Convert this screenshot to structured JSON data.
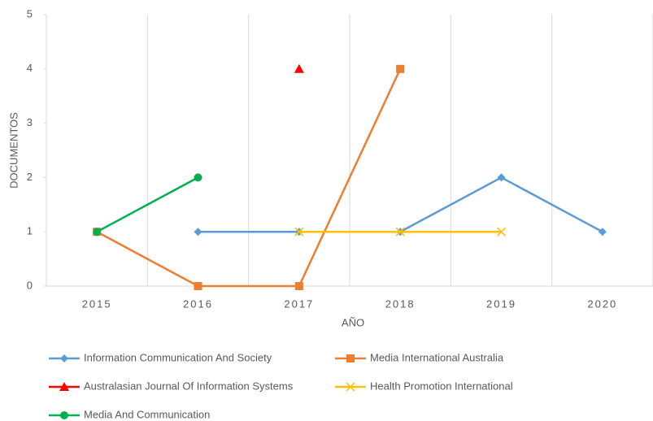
{
  "chart_data": {
    "type": "line",
    "categories": [
      "2015",
      "2016",
      "2017",
      "2018",
      "2019",
      "2020"
    ],
    "series": [
      {
        "name": "Information Communication And Society",
        "color": "#5b9bd5",
        "marker": "diamond",
        "values": [
          null,
          1,
          1,
          1,
          2,
          1
        ]
      },
      {
        "name": "Media International Australia",
        "color": "#ed7d31",
        "marker": "square",
        "values": [
          1,
          0,
          0,
          4,
          null,
          null
        ]
      },
      {
        "name": "Australasian Journal Of Information Systems",
        "color": "#ff0000",
        "marker": "triangle",
        "values": [
          null,
          null,
          4,
          null,
          null,
          null
        ]
      },
      {
        "name": "Health Promotion International",
        "color": "#ffc000",
        "marker": "x",
        "values": [
          null,
          null,
          1,
          1,
          1,
          null
        ]
      },
      {
        "name": "Media And Communication",
        "color": "#00b050",
        "marker": "circle",
        "values": [
          1,
          2,
          null,
          null,
          null,
          null
        ]
      }
    ],
    "xlabel": "AÑO",
    "ylabel": "DOCUMENTOS",
    "ylim": [
      0,
      5
    ],
    "yticks": [
      0,
      1,
      2,
      3,
      4,
      5
    ],
    "grid": true,
    "legend": "bottom"
  }
}
